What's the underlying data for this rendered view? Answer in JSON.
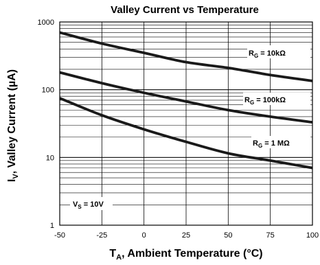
{
  "chart_data": {
    "type": "line",
    "title": "Valley Current vs Temperature",
    "xlabel": {
      "main": "T",
      "sub": "A",
      "rest": ", Ambient Temperature (°C)"
    },
    "ylabel": {
      "main": "I",
      "sub": "V",
      "rest": ", Valley Current (µA)"
    },
    "xlim": [
      -50,
      100
    ],
    "ylim": [
      1,
      1000
    ],
    "yscale": "log",
    "grid": true,
    "x_ticks": [
      -50,
      -25,
      0,
      25,
      50,
      75,
      100
    ],
    "x_tick_labels": [
      "-50",
      "-25",
      "0",
      "25",
      "50",
      "75",
      "100"
    ],
    "y_ticks": [
      1,
      10,
      100,
      1000
    ],
    "y_tick_labels": [
      "1",
      "10",
      "100",
      "1000"
    ],
    "series": [
      {
        "label_main": "R",
        "label_sub": "G",
        "label_rest": " = 10kΩ",
        "x": [
          -50,
          -25,
          0,
          25,
          50,
          75,
          100
        ],
        "y": [
          700,
          480,
          350,
          255,
          210,
          165,
          135
        ]
      },
      {
        "label_main": "R",
        "label_sub": "G",
        "label_rest": " = 100kΩ",
        "x": [
          -50,
          -25,
          0,
          25,
          50,
          75,
          100
        ],
        "y": [
          180,
          125,
          90,
          67,
          50,
          40,
          33
        ]
      },
      {
        "label_main": "R",
        "label_sub": "G",
        "label_rest": " = 1 MΩ",
        "x": [
          -50,
          -25,
          0,
          25,
          50,
          75,
          100
        ],
        "y": [
          75,
          42,
          26,
          17,
          11.5,
          9,
          7
        ]
      }
    ],
    "annotation": {
      "main": "V",
      "sub": "S",
      "rest": " = 10V"
    }
  },
  "colors": {
    "line": "#1a1a1a",
    "grid": "#000000",
    "background": "#ffffff"
  }
}
